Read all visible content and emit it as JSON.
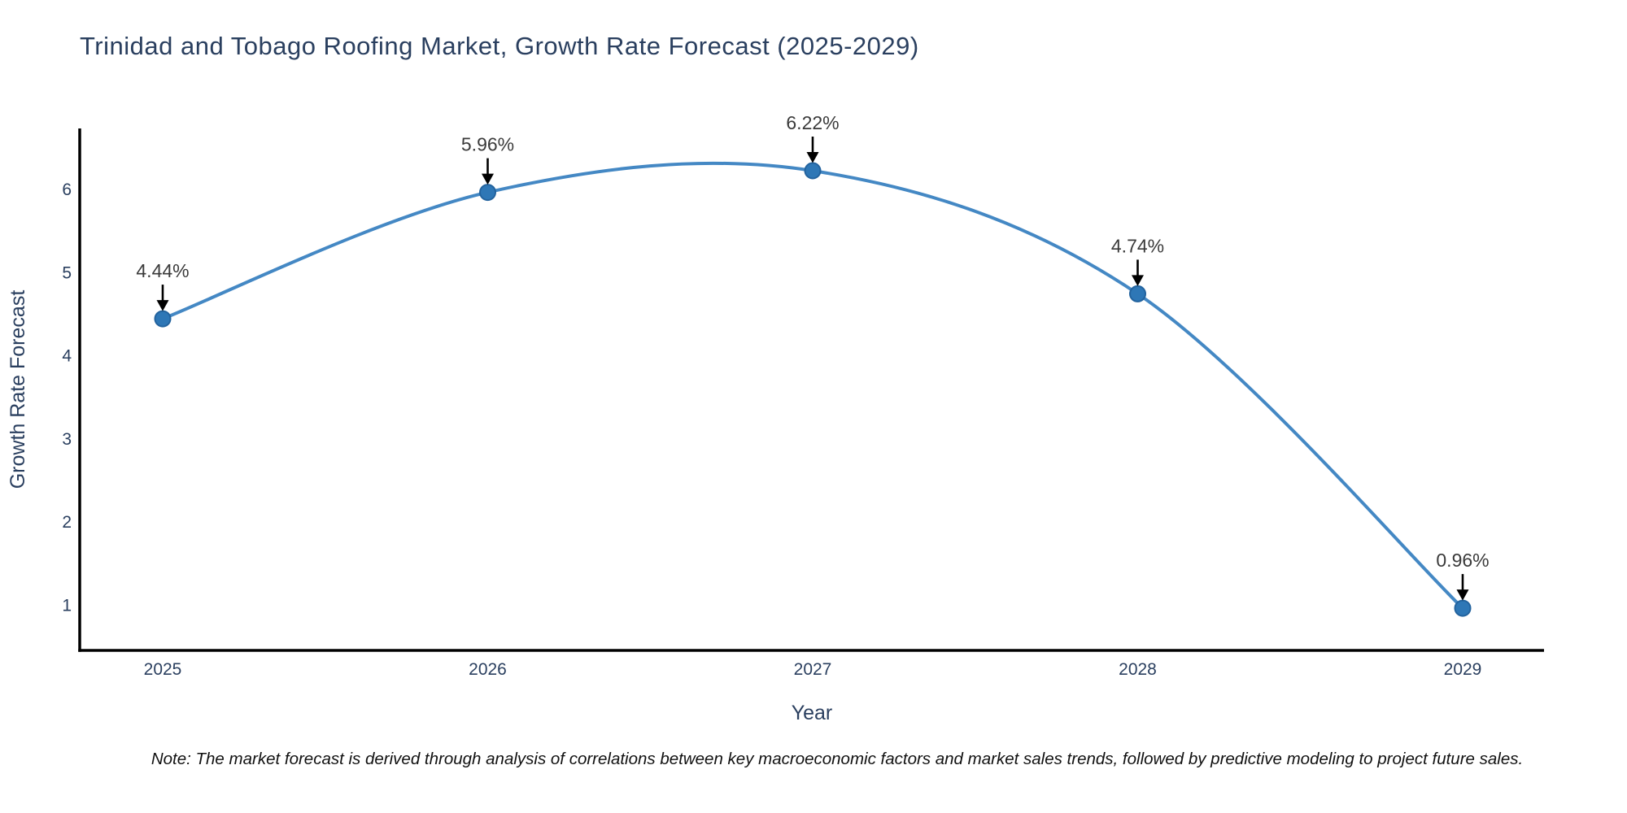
{
  "page": {
    "background": "#ffffff"
  },
  "note": "Note: The market forecast is derived through analysis of correlations between key macroeconomic factors and market sales trends, followed by predictive modeling to project future sales.",
  "chart_data": {
    "type": "line",
    "title": "Trinidad and Tobago Roofing Market, Growth Rate Forecast (2025-2029)",
    "xlabel": "Year",
    "ylabel": "Growth Rate Forecast",
    "x": [
      2025,
      2026,
      2027,
      2028,
      2029
    ],
    "x_tick_labels": [
      "2025",
      "2026",
      "2027",
      "2028",
      "2029"
    ],
    "values": [
      4.44,
      5.96,
      6.22,
      4.74,
      0.96
    ],
    "point_labels": [
      "4.44%",
      "5.96%",
      "6.22%",
      "4.74%",
      "0.96%"
    ],
    "y_ticks": [
      1,
      2,
      3,
      4,
      5,
      6
    ],
    "ylim": [
      0.45,
      6.76
    ],
    "xlim_years": [
      2024.74,
      2029.25
    ],
    "line_shape": "spline",
    "grid": false,
    "legend": "none",
    "annotations_have_arrows": true,
    "colors": {
      "line": "#4488c4",
      "marker": "#2e77b6",
      "marker_edge": "#23639e",
      "axis": "#000000",
      "tick_text": "#2a3f5f",
      "title_text": "#2a3f5f",
      "annotation_text": "#3a3a3a",
      "annotation_arrow": "#000000",
      "note_text": "#111111"
    }
  }
}
